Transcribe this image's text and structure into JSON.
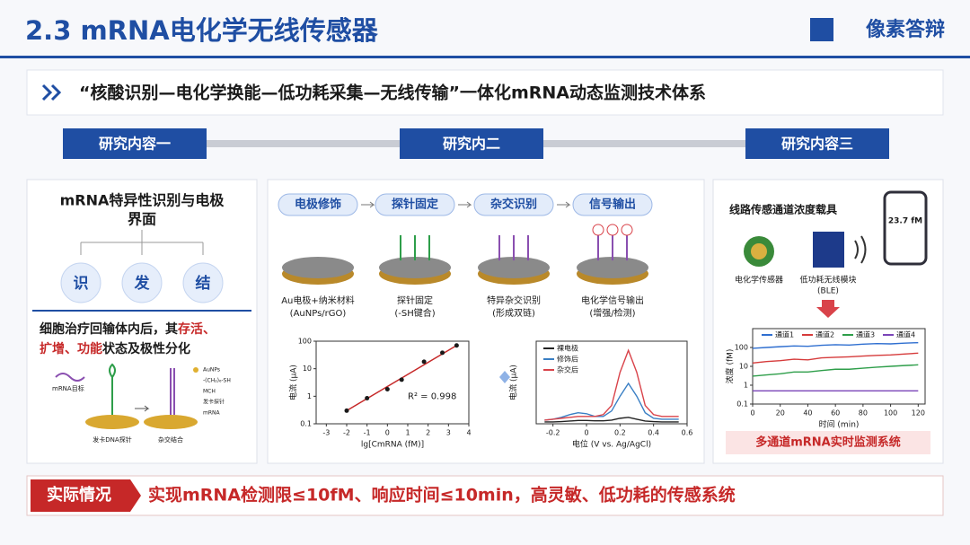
{
  "header": {
    "title": "2.3 mRNA电化学无线传感器",
    "logo": "像素答辩"
  },
  "banner": "“核酸识别—电化学换能—低功耗采集—无线传输”一体化mRNA动态监测技术体系",
  "tabs": [
    "研究内容一",
    "研究内二",
    "研究内容三"
  ],
  "panel1": {
    "title_lines": [
      "mRNA特异性识别与电极",
      "界面"
    ],
    "circles": [
      "识",
      "发",
      "结"
    ],
    "text_lines": [
      [
        {
          "text": "细胞治疗回输体内后，其"
        },
        {
          "text": "存活、",
          "highlight": true
        }
      ],
      [
        {
          "text": "扩增、",
          "highlight": true
        },
        {
          "text": "功能",
          "highlight": true
        },
        {
          "text": "状态及极性分化"
        }
      ]
    ],
    "diagram_labels": {
      "target": "mRNA目标",
      "aunps": "AuNPs",
      "thiol": "-(CH₂)₆-SH",
      "mch": "MCH",
      "hairpin": "发卡探针",
      "mrna": "mRNA",
      "left": "发卡DNA探针",
      "right": "杂交结合"
    }
  },
  "panel2": {
    "steps": [
      "电极修饰",
      "探针固定",
      "杂交识别",
      "信号输出"
    ],
    "captions": [
      [
        "Au电极+纳米材料",
        "(AuNPs/rGO)"
      ],
      [
        "探针固定",
        "(-SH键合)"
      ],
      [
        "特异杂交识别",
        "(形成双链)"
      ],
      [
        "电化学信号输出",
        "(增强/检测)"
      ]
    ],
    "charts": [
      {
        "type": "scatter",
        "x_label": "lg[CmRNA (fM)]",
        "y_label": "电流 (μA)",
        "annotation": "R² = 0.998",
        "color": "#1a1a1a",
        "fit_line": true,
        "log_y": true,
        "x": [
          -2,
          -1,
          0,
          0.7,
          1.8,
          2.7,
          3.4
        ],
        "values": [
          0.3,
          0.85,
          1.8,
          4,
          18,
          38,
          70
        ],
        "xlim": [
          -3.5,
          4
        ],
        "xticks": [
          -3,
          -2,
          -1,
          0,
          1,
          2,
          3,
          4
        ],
        "ylim": [
          0.1,
          100
        ],
        "yticks": [
          0.1,
          1,
          10,
          100
        ]
      },
      {
        "type": "line",
        "x_label": "电位 (V vs. Ag/AgCl)",
        "y_label": "电流 (μA)",
        "log_y": false,
        "x": [
          -0.25,
          -0.2,
          -0.15,
          -0.1,
          -0.05,
          0,
          0.05,
          0.1,
          0.15,
          0.2,
          0.25,
          0.3,
          0.35,
          0.4,
          0.45,
          0.5,
          0.55
        ],
        "series": [
          {
            "name": "裸电极",
            "color": "#222222",
            "values": [
              1,
              1,
              1.2,
              1.5,
              1.8,
              1.8,
              1.6,
              1.6,
              2,
              3,
              3.5,
              2.5,
              1.5,
              1.2,
              1,
              1,
              1
            ]
          },
          {
            "name": "修饰后",
            "color": "#3a7fc4",
            "values": [
              2,
              2.5,
              3.5,
              5,
              6,
              5.5,
              4,
              4,
              7,
              15,
              22,
              15,
              6,
              3,
              2.5,
              2.5,
              2.5
            ]
          },
          {
            "name": "杂交后",
            "color": "#d9434a",
            "values": [
              2,
              2.5,
              3,
              3.5,
              4,
              4,
              4,
              5,
              10,
              28,
              40,
              28,
              10,
              5,
              4,
              4,
              4
            ]
          }
        ],
        "xlim": [
          -0.3,
          0.6
        ],
        "xticks": [
          -0.2,
          0,
          0.2,
          0.4,
          0.6
        ],
        "ylim": [
          0,
          45
        ]
      }
    ]
  },
  "panel3": {
    "title": "线路传感通道浓度载具",
    "phone_value": "23.7 fM",
    "sensor": "电化学传感器",
    "module_lines": [
      "低功耗无线模块",
      "(BLE)"
    ],
    "footer": "多通道mRNA实时监测系统",
    "chart": {
      "type": "line",
      "x_label": "时间 (min)",
      "y_label": "浓度 (fM)",
      "log_y": true,
      "x": [
        0,
        10,
        20,
        30,
        40,
        50,
        60,
        70,
        80,
        90,
        100,
        110,
        120
      ],
      "series": [
        {
          "name": "通道1",
          "color": "#2f6fd0",
          "values": [
            90,
            100,
            110,
            120,
            115,
            130,
            140,
            135,
            150,
            160,
            155,
            170,
            180
          ]
        },
        {
          "name": "通道2",
          "color": "#d63b3b",
          "values": [
            15,
            18,
            20,
            24,
            22,
            28,
            30,
            32,
            35,
            38,
            40,
            45,
            50
          ]
        },
        {
          "name": "通道3",
          "color": "#2e9e4a",
          "values": [
            3,
            3.5,
            4,
            5,
            5,
            6,
            7,
            7,
            8,
            9,
            10,
            11,
            12
          ]
        },
        {
          "name": "通道4",
          "color": "#7a45b8",
          "values": [
            0.5,
            0.5,
            0.5,
            0.5,
            0.5,
            0.5,
            0.5,
            0.5,
            0.5,
            0.5,
            0.5,
            0.5,
            0.5
          ]
        }
      ],
      "xlim": [
        0,
        125
      ],
      "xticks": [
        0,
        20,
        40,
        60,
        80,
        100,
        120
      ],
      "ylim": [
        0.1,
        1000
      ],
      "yticks": [
        0.1,
        1,
        10,
        100
      ]
    }
  },
  "bottom": {
    "tag": "实际情况",
    "text": "实现mRNA检测限≤10fM、响应时间≤10min，高灵敏、低功耗的传感系统"
  }
}
